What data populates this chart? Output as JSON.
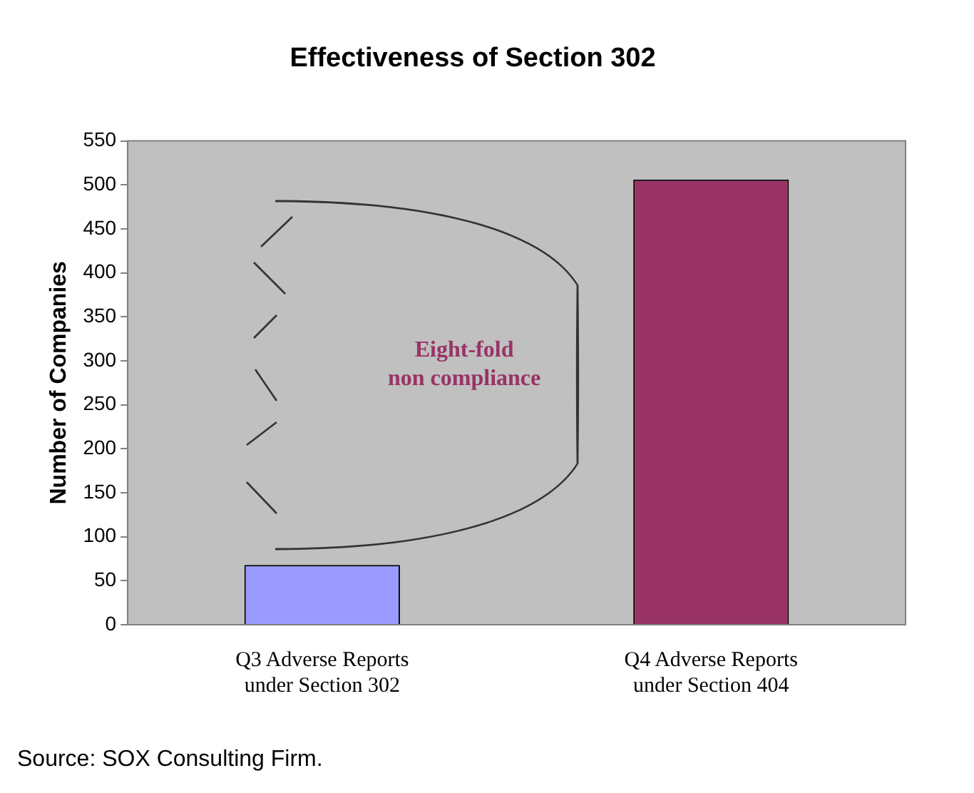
{
  "chart_data": {
    "type": "bar",
    "title": "Effectiveness of Section 302",
    "ylabel": "Number of Companies",
    "categories": [
      "Q3 Adverse Reports\nunder Section 302",
      "Q4 Adverse Reports\nunder Section 404"
    ],
    "values": [
      68,
      506
    ],
    "colors": [
      "#9999ff",
      "#993366"
    ],
    "ylim": [
      0,
      550
    ],
    "yticks": [
      0,
      50,
      100,
      150,
      200,
      250,
      300,
      350,
      400,
      450,
      500,
      550
    ],
    "grid": false,
    "annotations": [
      "Eight-fold\nnon compliance",
      "Source: SOX Consulting Firm."
    ]
  }
}
